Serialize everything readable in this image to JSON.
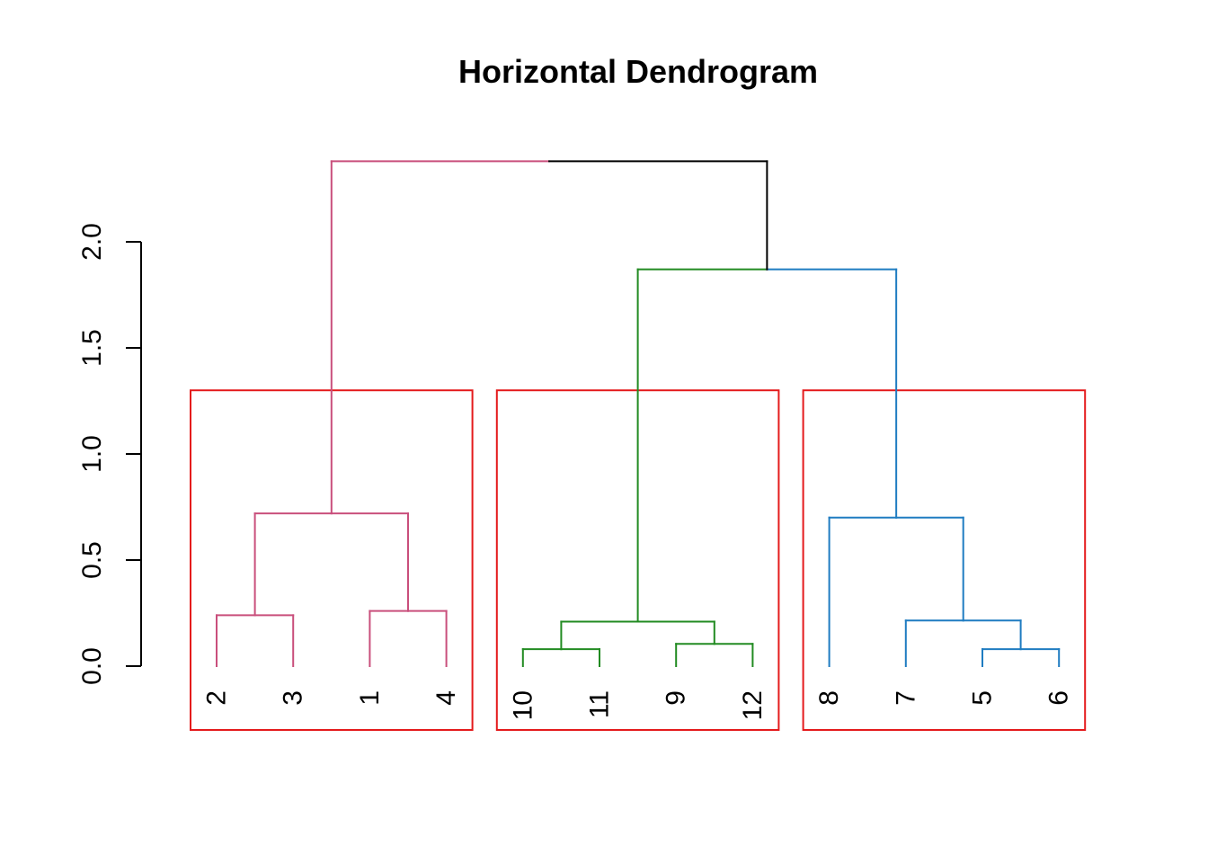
{
  "chart_data": {
    "type": "dendrogram",
    "title": "Horizontal Dendrogram",
    "ylim": [
      0,
      2.0
    ],
    "y_ticks": [
      0.0,
      0.5,
      1.0,
      1.5,
      2.0
    ],
    "y_tick_labels": [
      "0.0",
      "0.5",
      "1.0",
      "1.5",
      "2.0"
    ],
    "leaf_order": [
      "2",
      "3",
      "1",
      "4",
      "10",
      "11",
      "9",
      "12",
      "8",
      "7",
      "5",
      "6"
    ],
    "merges": [
      {
        "left": "2",
        "right": "3",
        "height": 0.24,
        "color": "#C94F7C"
      },
      {
        "left": "1",
        "right": "4",
        "height": 0.26,
        "color": "#C94F7C"
      },
      {
        "left": "{2,3}",
        "right": "{1,4}",
        "height": 0.72,
        "color": "#C94F7C"
      },
      {
        "left": "10",
        "right": "11",
        "height": 0.08,
        "color": "#228B22"
      },
      {
        "left": "9",
        "right": "12",
        "height": 0.105,
        "color": "#228B22"
      },
      {
        "left": "{10,11}",
        "right": "{9,12}",
        "height": 0.21,
        "color": "#228B22"
      },
      {
        "left": "5",
        "right": "6",
        "height": 0.08,
        "color": "#1F7CC1"
      },
      {
        "left": "7",
        "right": "{5,6}",
        "height": 0.215,
        "color": "#1F7CC1"
      },
      {
        "left": "8",
        "right": "{7,5,6}",
        "height": 0.7,
        "color": "#1F7CC1"
      },
      {
        "left": "{10,11,9,12}",
        "right": "{8,7,5,6}",
        "height": 1.87,
        "color_left": "#228B22",
        "color_right": "#1F7CC1"
      },
      {
        "left": "{2,3,1,4}",
        "right": "{10,11,9,12,8,7,5,6}",
        "height": 2.38,
        "color_left": "#C94F7C",
        "color_right": "#000000"
      }
    ],
    "cluster_boxes": {
      "count": 3,
      "cut_height": 1.3,
      "groups": [
        [
          "2",
          "3",
          "1",
          "4"
        ],
        [
          "10",
          "11",
          "9",
          "12"
        ],
        [
          "8",
          "7",
          "5",
          "6"
        ]
      ],
      "color": "#E41A1C"
    },
    "colors": {
      "cluster1": "#C94F7C",
      "cluster2": "#228B22",
      "cluster3": "#1F7CC1",
      "root": "#000000",
      "box": "#E41A1C"
    }
  }
}
